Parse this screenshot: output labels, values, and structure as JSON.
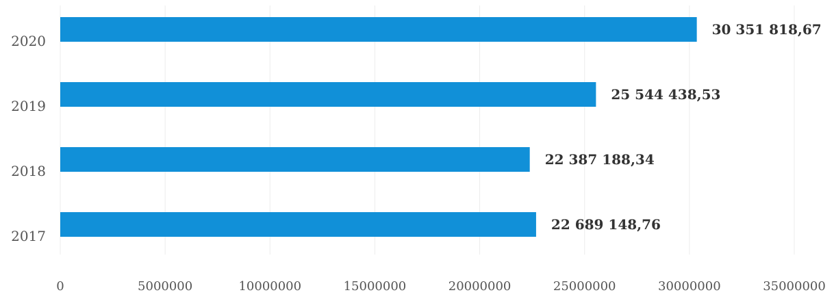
{
  "chart_data": {
    "type": "bar",
    "orientation": "horizontal",
    "categories": [
      "2020",
      "2019",
      "2018",
      "2017"
    ],
    "values": [
      30351818.67,
      25544438.53,
      22387188.34,
      22689148.76
    ],
    "data_labels": [
      "30 351 818,67",
      "25 544 438,53",
      "22 387 188,34",
      "22 689 148,76"
    ],
    "xlim": [
      0,
      35000000
    ],
    "x_ticks": [
      0,
      5000000,
      10000000,
      15000000,
      20000000,
      25000000,
      30000000,
      35000000
    ],
    "x_tick_labels": [
      "0",
      "5000000",
      "10000000",
      "15000000",
      "20000000",
      "25000000",
      "30000000",
      "35000000"
    ],
    "grid": true,
    "legend": "none",
    "bar_color": "#1190d8",
    "title": "",
    "xlabel": "",
    "ylabel": ""
  }
}
